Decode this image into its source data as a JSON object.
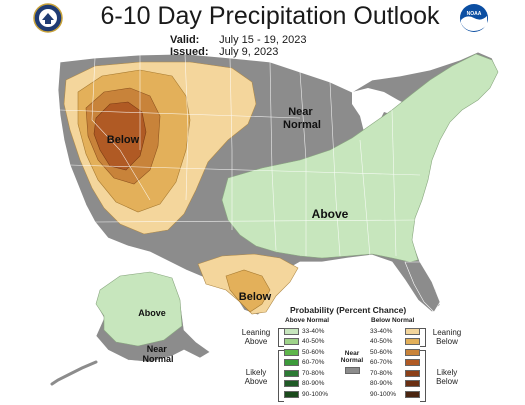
{
  "header": {
    "title": "6-10 Day Precipitation Outlook",
    "valid_label": "Valid:",
    "valid_dates": "July 15 - 19, 2023",
    "issued_label": "Issued:",
    "issued_date": "July 9, 2023"
  },
  "logos": {
    "left": "doc-seal-icon",
    "right": "noaa-logo-icon",
    "right_text": "NOAA"
  },
  "regions": [
    {
      "label": "Below",
      "category": "below",
      "color": "#c06a2b"
    },
    {
      "label": "Near\nNormal",
      "category": "near-normal",
      "color": "#8c8c8c"
    },
    {
      "label": "Above",
      "category": "above",
      "color": "#c7e6bd"
    },
    {
      "label": "Below",
      "category": "below",
      "color": "#f0c987"
    },
    {
      "label": "Above",
      "category": "above",
      "color": "#c7e6bd"
    },
    {
      "label": "Near\nNormal",
      "category": "near-normal",
      "color": "#8c8c8c"
    }
  ],
  "colors": {
    "near_normal": "#8c8c8c",
    "above_33_40": "#c7e6bd",
    "below_33_40": "#f4d69c",
    "below_40_50": "#e3b05a",
    "below_50_60": "#c8833a",
    "below_60_70": "#b05a24",
    "water": "#ffffff",
    "state_lines": "#ffffff"
  },
  "legend": {
    "title": "Probability (Percent Chance)",
    "above_header": "Above Normal",
    "below_header": "Below Normal",
    "near_normal_label": "Near\nNormal",
    "leaning_above": "Leaning\nAbove",
    "likely_above": "Likely\nAbove",
    "leaning_below": "Leaning\nBelow",
    "likely_below": "Likely\nBelow",
    "above": [
      {
        "range": "33-40%",
        "color": "#c7e6bd"
      },
      {
        "range": "40-50%",
        "color": "#9fd38a"
      },
      {
        "range": "50-60%",
        "color": "#5fb64c"
      },
      {
        "range": "60-70%",
        "color": "#3c9a3a"
      },
      {
        "range": "70-80%",
        "color": "#2c7a34"
      },
      {
        "range": "80-90%",
        "color": "#1f5a26"
      },
      {
        "range": "90-100%",
        "color": "#1a4a1c"
      }
    ],
    "below": [
      {
        "range": "33-40%",
        "color": "#f4d69c"
      },
      {
        "range": "40-50%",
        "color": "#e3b05a"
      },
      {
        "range": "50-60%",
        "color": "#c8833a"
      },
      {
        "range": "60-70%",
        "color": "#b05a24"
      },
      {
        "range": "70-80%",
        "color": "#8c4018"
      },
      {
        "range": "80-90%",
        "color": "#6a2f12"
      },
      {
        "range": "90-100%",
        "color": "#4a2410"
      }
    ]
  }
}
